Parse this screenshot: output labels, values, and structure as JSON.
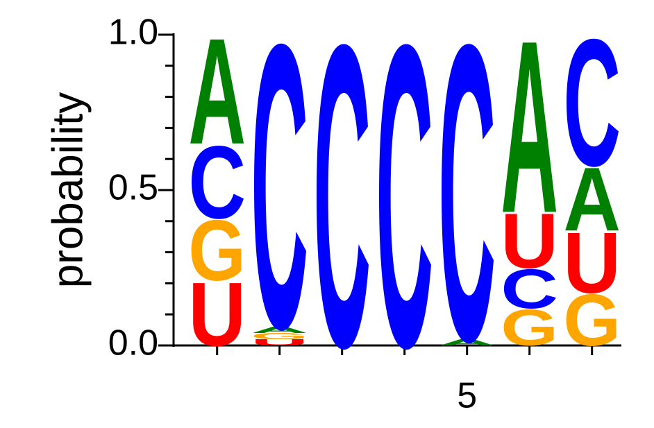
{
  "chart_data": {
    "type": "logo",
    "ylabel": "probability",
    "x": [
      1,
      2,
      3,
      4,
      5,
      6,
      7
    ],
    "stacks": [
      {
        "letters": [
          "U",
          "G",
          "C",
          "A"
        ],
        "values": [
          0.21,
          0.2,
          0.24,
          0.35
        ]
      },
      {
        "letters": [
          "U",
          "G",
          "A",
          "C"
        ],
        "values": [
          0.02,
          0.02,
          0.02,
          0.94
        ]
      },
      {
        "letters": [
          "C"
        ],
        "values": [
          1.0
        ]
      },
      {
        "letters": [
          "C"
        ],
        "values": [
          1.0
        ]
      },
      {
        "letters": [
          "A",
          "C"
        ],
        "values": [
          0.02,
          0.98
        ]
      },
      {
        "letters": [
          "G",
          "C",
          "U",
          "A"
        ],
        "values": [
          0.12,
          0.13,
          0.18,
          0.57
        ]
      },
      {
        "letters": [
          "G",
          "U",
          "A",
          "C"
        ],
        "values": [
          0.17,
          0.2,
          0.21,
          0.42
        ]
      }
    ],
    "colors": {
      "A": "#008000",
      "C": "#0000ff",
      "G": "#ffa500",
      "U": "#ff0000"
    },
    "xlim": [
      0.47,
      7.47
    ],
    "xticks": [
      5
    ],
    "x_minor_ticks": [
      1,
      2,
      3,
      4,
      6,
      7
    ],
    "ylim": [
      0,
      1
    ],
    "yticks": [
      {
        "value": 0,
        "label": "0.0"
      },
      {
        "value": 0.5,
        "label": "0.5"
      },
      {
        "value": 1,
        "label": "1.0"
      }
    ],
    "y_minor_ticks": [
      0.1,
      0.2,
      0.3,
      0.4,
      0.6,
      0.7,
      0.8,
      0.9
    ]
  }
}
